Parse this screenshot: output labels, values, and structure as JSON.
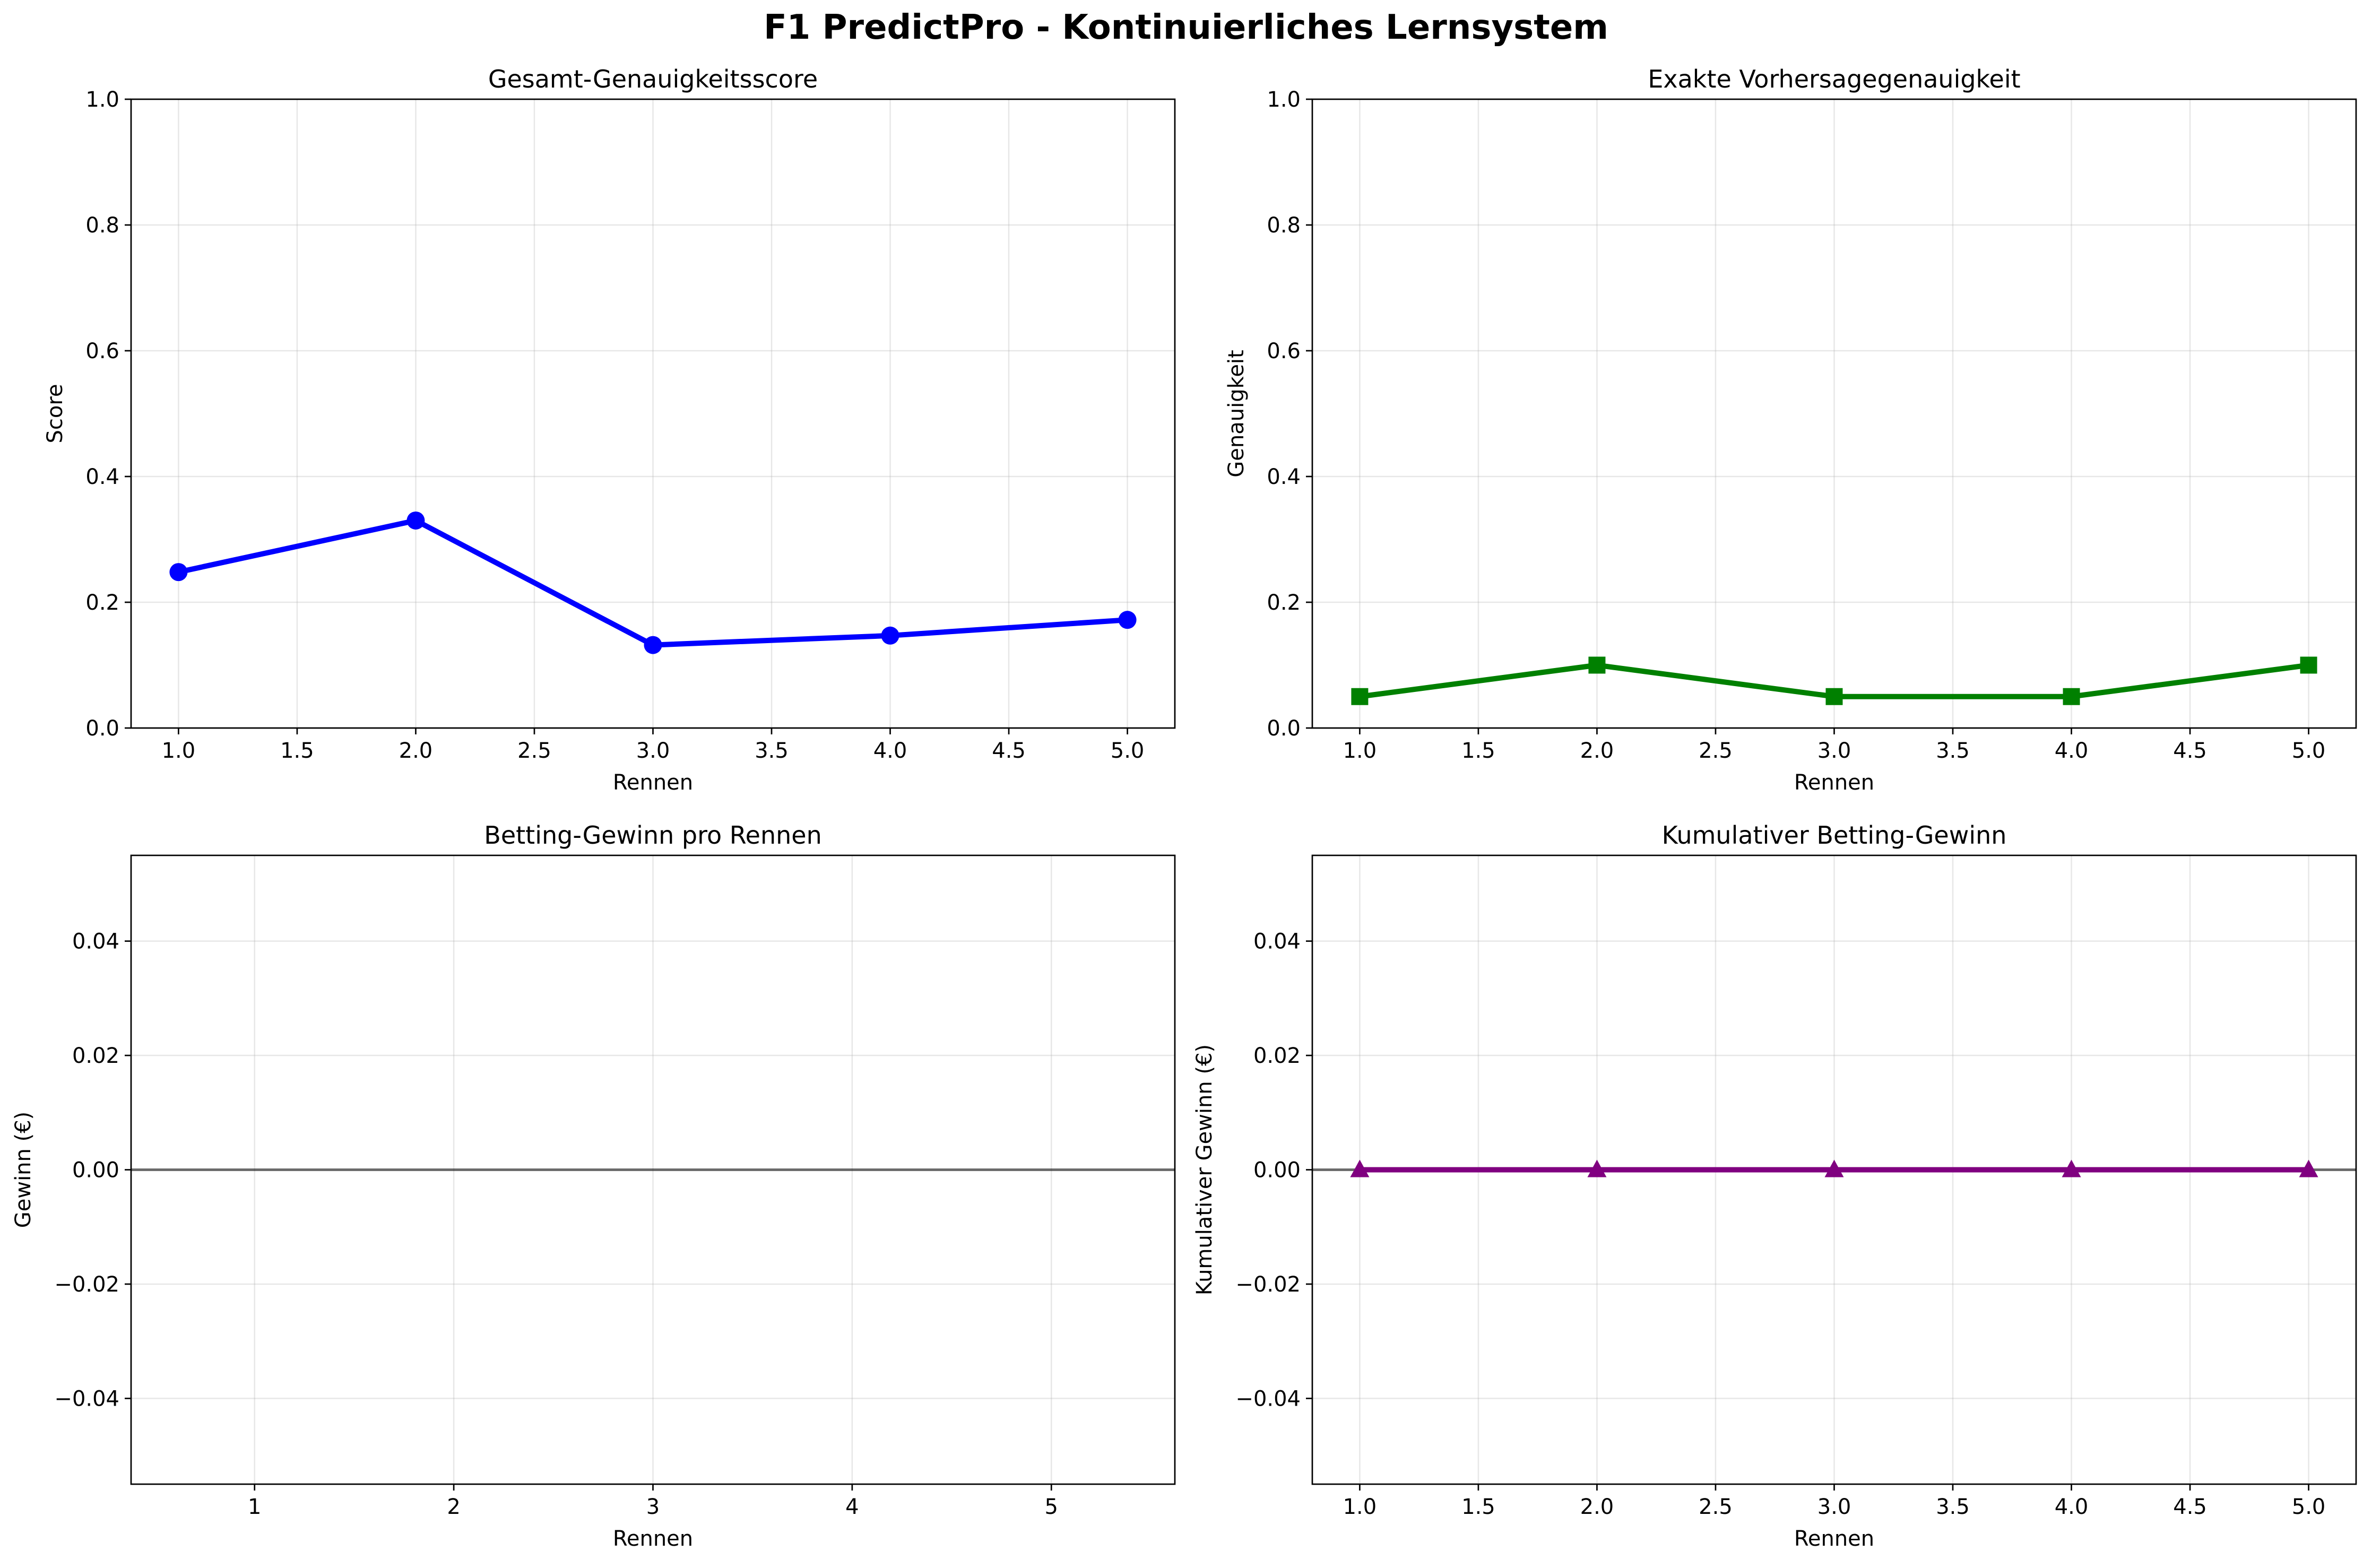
{
  "figure": {
    "title": "F1 PredictPro - Kontinuierliches Lernsystem"
  },
  "chart_data": [
    {
      "id": "accuracy",
      "type": "line",
      "title": "Gesamt-Genauigkeitsscore",
      "xlabel": "Rennen",
      "ylabel": "Score",
      "xlim": [
        0.8,
        5.2
      ],
      "ylim": [
        0.0,
        1.0
      ],
      "xticks": [
        1.0,
        1.5,
        2.0,
        2.5,
        3.0,
        3.5,
        4.0,
        4.5,
        5.0
      ],
      "xtick_labels": [
        "1.0",
        "1.5",
        "2.0",
        "2.5",
        "3.0",
        "3.5",
        "4.0",
        "4.5",
        "5.0"
      ],
      "yticks": [
        0.0,
        0.2,
        0.4,
        0.6,
        0.8,
        1.0
      ],
      "ytick_labels": [
        "0.0",
        "0.2",
        "0.4",
        "0.6",
        "0.8",
        "1.0"
      ],
      "grid": true,
      "series": [
        {
          "x": [
            1,
            2,
            3,
            4,
            5
          ],
          "values": [
            0.248,
            0.33,
            0.132,
            0.147,
            0.172
          ],
          "color": "#0000ff",
          "marker": "circle"
        }
      ]
    },
    {
      "id": "exact",
      "type": "line",
      "title": "Exakte Vorhersagegenauigkeit",
      "xlabel": "Rennen",
      "ylabel": "Genauigkeit",
      "xlim": [
        0.8,
        5.2
      ],
      "ylim": [
        0.0,
        1.0
      ],
      "xticks": [
        1.0,
        1.5,
        2.0,
        2.5,
        3.0,
        3.5,
        4.0,
        4.5,
        5.0
      ],
      "xtick_labels": [
        "1.0",
        "1.5",
        "2.0",
        "2.5",
        "3.0",
        "3.5",
        "4.0",
        "4.5",
        "5.0"
      ],
      "yticks": [
        0.0,
        0.2,
        0.4,
        0.6,
        0.8,
        1.0
      ],
      "ytick_labels": [
        "0.0",
        "0.2",
        "0.4",
        "0.6",
        "0.8",
        "1.0"
      ],
      "grid": true,
      "series": [
        {
          "x": [
            1,
            2,
            3,
            4,
            5
          ],
          "values": [
            0.05,
            0.1,
            0.05,
            0.05,
            0.1
          ],
          "color": "#008000",
          "marker": "square"
        }
      ]
    },
    {
      "id": "profit",
      "type": "bar",
      "title": "Betting-Gewinn pro Rennen",
      "xlabel": "Rennen",
      "ylabel": "Gewinn (€)",
      "xlim": [
        0.38,
        5.62
      ],
      "ylim": [
        -0.055,
        0.055
      ],
      "xticks": [
        1,
        2,
        3,
        4,
        5
      ],
      "xtick_labels": [
        "1",
        "2",
        "3",
        "4",
        "5"
      ],
      "yticks": [
        -0.04,
        -0.02,
        0.0,
        0.02,
        0.04
      ],
      "ytick_labels": [
        "−0.04",
        "−0.02",
        "0.00",
        "0.02",
        "0.04"
      ],
      "grid": true,
      "reference_line": 0.0,
      "categories": [
        "1",
        "2",
        "3",
        "4",
        "5"
      ],
      "values": [
        0,
        0,
        0,
        0,
        0
      ]
    },
    {
      "id": "cumulative",
      "type": "line",
      "title": "Kumulativer Betting-Gewinn",
      "xlabel": "Rennen",
      "ylabel": "Kumulativer Gewinn (€)",
      "xlim": [
        0.8,
        5.2
      ],
      "ylim": [
        -0.055,
        0.055
      ],
      "xticks": [
        1.0,
        1.5,
        2.0,
        2.5,
        3.0,
        3.5,
        4.0,
        4.5,
        5.0
      ],
      "xtick_labels": [
        "1.0",
        "1.5",
        "2.0",
        "2.5",
        "3.0",
        "3.5",
        "4.0",
        "4.5",
        "5.0"
      ],
      "yticks": [
        -0.04,
        -0.02,
        0.0,
        0.02,
        0.04
      ],
      "ytick_labels": [
        "−0.04",
        "−0.02",
        "0.00",
        "0.02",
        "0.04"
      ],
      "grid": true,
      "reference_line": 0.0,
      "series": [
        {
          "x": [
            1,
            2,
            3,
            4,
            5
          ],
          "values": [
            0,
            0,
            0,
            0,
            0
          ],
          "color": "#800080",
          "marker": "triangle"
        }
      ]
    }
  ]
}
